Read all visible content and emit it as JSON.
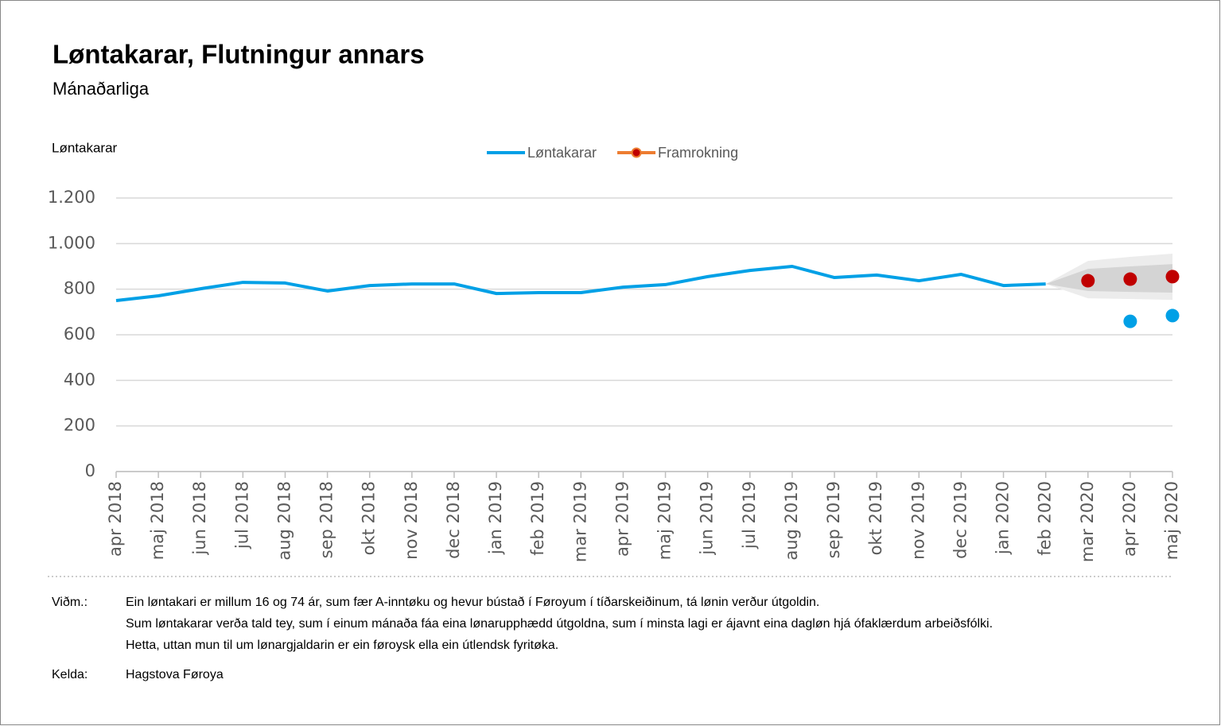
{
  "chart_data": {
    "type": "line",
    "title": "Løntakarar, Flutningur annars",
    "subtitle": "Mánaðarliga",
    "y_axis_label": "Løntakarar",
    "categories": [
      "apr 2018",
      "maj 2018",
      "jun 2018",
      "jul 2018",
      "aug 2018",
      "sep 2018",
      "okt 2018",
      "nov 2018",
      "dec 2018",
      "jan 2019",
      "feb 2019",
      "mar 2019",
      "apr 2019",
      "maj 2019",
      "jun 2019",
      "jul 2019",
      "aug 2019",
      "sep 2019",
      "okt 2019",
      "nov 2019",
      "dec 2019",
      "jan 2020",
      "feb 2020",
      "mar 2020",
      "apr 2020",
      "maj 2020"
    ],
    "series": [
      {
        "name": "Løntakarar",
        "color": "#00a0e6",
        "style": "line",
        "values": [
          750,
          771,
          802,
          830,
          827,
          792,
          816,
          823,
          823,
          781,
          785,
          785,
          809,
          820,
          855,
          882,
          900,
          851,
          862,
          837,
          865,
          816,
          823,
          null,
          null,
          null
        ]
      },
      {
        "name": "Framrokning",
        "color": "#c00000",
        "legend_color": "#ed7d31",
        "style": "dots",
        "values": [
          null,
          null,
          null,
          null,
          null,
          null,
          null,
          null,
          null,
          null,
          null,
          null,
          null,
          null,
          null,
          null,
          null,
          null,
          null,
          null,
          null,
          null,
          null,
          837,
          844,
          855
        ]
      },
      {
        "color": "#00a0e6",
        "style": "dots",
        "values": [
          null,
          null,
          null,
          null,
          null,
          null,
          null,
          null,
          null,
          null,
          null,
          null,
          null,
          null,
          null,
          null,
          null,
          null,
          null,
          null,
          null,
          null,
          null,
          null,
          659,
          684
        ]
      }
    ],
    "bands": [
      {
        "color": "#ececec",
        "lower": [
          null,
          null,
          null,
          null,
          null,
          null,
          null,
          null,
          null,
          null,
          null,
          null,
          null,
          null,
          null,
          null,
          null,
          null,
          null,
          null,
          null,
          null,
          823,
          760,
          757,
          753
        ],
        "upper": [
          null,
          null,
          null,
          null,
          null,
          null,
          null,
          null,
          null,
          null,
          null,
          null,
          null,
          null,
          null,
          null,
          null,
          null,
          null,
          null,
          null,
          null,
          823,
          924,
          942,
          956
        ]
      },
      {
        "color": "#d4d4d4",
        "lower": [
          null,
          null,
          null,
          null,
          null,
          null,
          null,
          null,
          null,
          null,
          null,
          null,
          null,
          null,
          null,
          null,
          null,
          null,
          null,
          null,
          null,
          null,
          823,
          792,
          788,
          785
        ],
        "upper": [
          null,
          null,
          null,
          null,
          null,
          null,
          null,
          null,
          null,
          null,
          null,
          null,
          null,
          null,
          null,
          null,
          null,
          null,
          null,
          null,
          null,
          null,
          823,
          889,
          900,
          910
        ]
      }
    ],
    "ylim": [
      0,
      1200
    ],
    "yticks": [
      0,
      200,
      400,
      600,
      800,
      {
        "value": 1000,
        "label": "1.000"
      },
      {
        "value": 1200,
        "label": "1.200"
      }
    ],
    "grid": true,
    "legend": "top",
    "notes": {
      "label": "Viðm.:",
      "lines": [
        "Ein løntakari er millum 16 og 74 ár, sum fær A-inntøku og hevur bústað í Føroyum í tíðarskeiðinum, tá lønin verður útgoldin.",
        "Sum løntakarar verða tald tey, sum í einum mánaða fáa eina lønarupphædd útgoldna, sum í minsta lagi er ájavnt eina dagløn hjá ófaklærdum arbeiðsfólki.",
        "Hetta, uttan mun til um lønargjaldarin er ein føroysk ella ein útlendsk fyritøka."
      ]
    },
    "source": {
      "label": "Kelda:",
      "text": "Hagstova Føroya"
    }
  }
}
